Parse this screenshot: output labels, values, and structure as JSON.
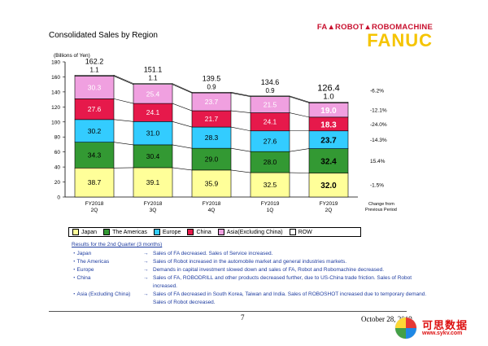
{
  "header": {
    "title": "Consolidated Sales by Region",
    "brand_top": "FA▲ROBOT▲ROBOMACHINE",
    "brand_main": "FANUC"
  },
  "chart_data": {
    "type": "bar",
    "stacked": true,
    "ylabel": "(Billions of Yen)",
    "ylim": [
      0,
      180
    ],
    "yticks": [
      0,
      20,
      40,
      60,
      80,
      100,
      120,
      140,
      160,
      180
    ],
    "categories": [
      "FY2018\n2Q",
      "FY2018\n3Q",
      "FY2018\n4Q",
      "FY2019\n1Q",
      "FY2019\n2Q"
    ],
    "totals": [
      162.2,
      151.1,
      139.5,
      134.6,
      126.4
    ],
    "series": [
      {
        "name": "Japan",
        "color": "#ffff99",
        "values": [
          38.7,
          39.1,
          35.9,
          32.5,
          32.0
        ],
        "labels": [
          "38.7",
          "39.1",
          "35.9",
          "32.5",
          "32.0"
        ],
        "change": "-1.5%"
      },
      {
        "name": "The Americas",
        "color": "#339933",
        "values": [
          34.3,
          30.4,
          29.0,
          28.0,
          32.4
        ],
        "labels": [
          "34.3",
          "30.4",
          "29.0",
          "28.0",
          "32.4"
        ],
        "change": "15.4%"
      },
      {
        "name": "Europe",
        "color": "#33ccff",
        "values": [
          30.2,
          31.0,
          28.3,
          27.6,
          23.7
        ],
        "labels": [
          "30.2",
          "31.0",
          "28.3",
          "27.6",
          "23.7"
        ],
        "change": "-14.3%"
      },
      {
        "name": "China",
        "color": "#e6194b",
        "values": [
          27.6,
          24.1,
          21.7,
          24.1,
          18.3
        ],
        "labels": [
          "27.6",
          "24.1",
          "21.7",
          "24.1",
          "18.3"
        ],
        "change": "-24.0%"
      },
      {
        "name": "Asia(Excluding China)",
        "color": "#f0a0e0",
        "values": [
          30.3,
          25.4,
          23.7,
          21.5,
          19.0
        ],
        "labels": [
          "30.3",
          "25.4",
          "23.7",
          "21.5",
          "19.0"
        ],
        "change": "-12.1%"
      },
      {
        "name": "ROW",
        "color": "#ffffff",
        "values": [
          1.1,
          1.1,
          0.9,
          0.9,
          1.0
        ],
        "labels": [
          "1.1",
          "1.1",
          "0.9",
          "0.9",
          "1.0"
        ],
        "change": ""
      }
    ],
    "total_change": "-6.2%",
    "change_header": "Change from\nPrevious Period"
  },
  "notes": {
    "title": "Results for the 2nd Quarter (3 months)",
    "rows": [
      {
        "region": "・Japan",
        "arrow": "→",
        "text": "Sales of FA decreased. Sales of Service increased."
      },
      {
        "region": "・The Americas",
        "arrow": "→",
        "text": "Sales of Robot increased in the automobile market and general industries markets."
      },
      {
        "region": "・Europe",
        "arrow": "→",
        "text": "Demands in capital investment slowed down and sales of FA, Robot and Robomachine decreased."
      },
      {
        "region": "・China",
        "arrow": "→",
        "text": "Sales of FA, ROBODRILL and other products decreased further, due to US-China trade friction. Sales of Robot increased."
      },
      {
        "region": "・Asia (Excluding China)",
        "arrow": "→",
        "text": "Sales of FA decreased in South Korea, Taiwan and India. Sales of ROBOSHOT increased due to temporary demand. Sales of Robot decreased."
      }
    ]
  },
  "footer": {
    "page": "7",
    "date": "October 28, 2019",
    "watermark": "可思数据",
    "watermark_url": "www.sykv.com"
  }
}
